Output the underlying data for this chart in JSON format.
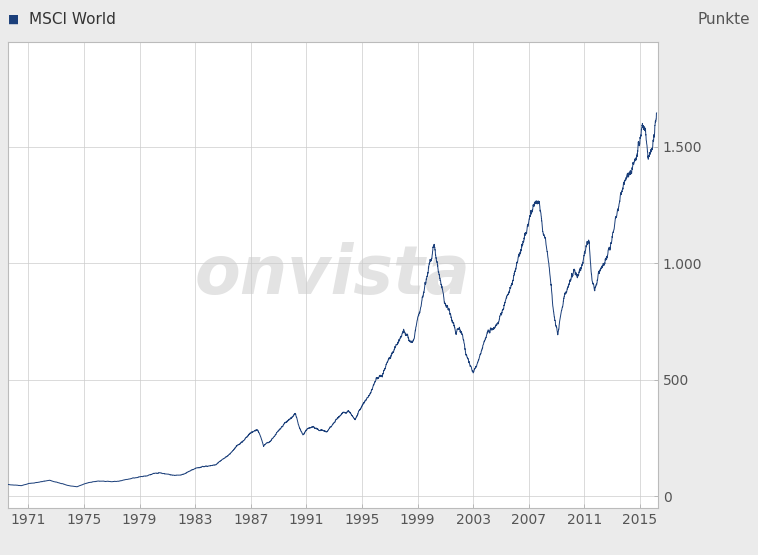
{
  "title_left": "MSCI World",
  "title_right": "Punkte",
  "watermark": "onvista",
  "line_color": "#1b3f7a",
  "bg_color": "#ebebeb",
  "plot_bg_color": "#ffffff",
  "grid_color": "#cccccc",
  "yticks": [
    0,
    500,
    1000,
    1500
  ],
  "ytick_labels": [
    "0",
    "500",
    "1.000",
    "1.500"
  ],
  "xticks": [
    1971,
    1975,
    1979,
    1983,
    1987,
    1991,
    1995,
    1999,
    2003,
    2007,
    2011,
    2015
  ],
  "xmin": 1969.5,
  "xmax": 2016.3,
  "ymin": -50,
  "ymax": 1950,
  "legend_square_color": "#1b3f7a",
  "title_fontsize": 11,
  "tick_fontsize": 10,
  "key_points": [
    [
      1969.5,
      50
    ],
    [
      1970.0,
      48
    ],
    [
      1970.5,
      45
    ],
    [
      1971.0,
      54
    ],
    [
      1971.5,
      57
    ],
    [
      1972.0,
      63
    ],
    [
      1972.5,
      68
    ],
    [
      1973.0,
      60
    ],
    [
      1973.5,
      52
    ],
    [
      1974.0,
      44
    ],
    [
      1974.5,
      41
    ],
    [
      1975.0,
      52
    ],
    [
      1975.5,
      60
    ],
    [
      1976.0,
      65
    ],
    [
      1976.5,
      64
    ],
    [
      1977.0,
      62
    ],
    [
      1977.5,
      64
    ],
    [
      1978.0,
      70
    ],
    [
      1978.5,
      77
    ],
    [
      1979.0,
      82
    ],
    [
      1979.5,
      87
    ],
    [
      1980.0,
      96
    ],
    [
      1980.5,
      100
    ],
    [
      1981.0,
      94
    ],
    [
      1981.5,
      89
    ],
    [
      1982.0,
      91
    ],
    [
      1982.5,
      104
    ],
    [
      1983.0,
      118
    ],
    [
      1983.5,
      125
    ],
    [
      1984.0,
      130
    ],
    [
      1984.5,
      136
    ],
    [
      1985.0,
      158
    ],
    [
      1985.5,
      180
    ],
    [
      1986.0,
      215
    ],
    [
      1986.5,
      242
    ],
    [
      1987.0,
      272
    ],
    [
      1987.5,
      285
    ],
    [
      1987.75,
      248
    ],
    [
      1987.92,
      212
    ],
    [
      1988.0,
      220
    ],
    [
      1988.5,
      242
    ],
    [
      1989.0,
      282
    ],
    [
      1989.5,
      316
    ],
    [
      1989.9,
      335
    ],
    [
      1990.2,
      355
    ],
    [
      1990.5,
      294
    ],
    [
      1990.75,
      265
    ],
    [
      1991.0,
      282
    ],
    [
      1991.5,
      298
    ],
    [
      1992.0,
      284
    ],
    [
      1992.5,
      276
    ],
    [
      1993.0,
      315
    ],
    [
      1993.5,
      352
    ],
    [
      1994.0,
      364
    ],
    [
      1994.5,
      330
    ],
    [
      1995.0,
      382
    ],
    [
      1995.5,
      434
    ],
    [
      1996.0,
      496
    ],
    [
      1996.5,
      530
    ],
    [
      1997.0,
      592
    ],
    [
      1997.5,
      650
    ],
    [
      1998.0,
      716
    ],
    [
      1998.5,
      657
    ],
    [
      1998.75,
      673
    ],
    [
      1999.0,
      774
    ],
    [
      1999.25,
      820
    ],
    [
      1999.5,
      888
    ],
    [
      1999.75,
      955
    ],
    [
      1999.9,
      1012
    ],
    [
      2000.0,
      1000
    ],
    [
      2000.1,
      1050
    ],
    [
      2000.2,
      1080
    ],
    [
      2000.3,
      1040
    ],
    [
      2000.5,
      960
    ],
    [
      2000.75,
      890
    ],
    [
      2001.0,
      828
    ],
    [
      2001.25,
      798
    ],
    [
      2001.5,
      748
    ],
    [
      2001.75,
      703
    ],
    [
      2002.0,
      727
    ],
    [
      2002.25,
      688
    ],
    [
      2002.5,
      606
    ],
    [
      2002.75,
      566
    ],
    [
      2003.0,
      530
    ],
    [
      2003.25,
      556
    ],
    [
      2003.5,
      606
    ],
    [
      2003.75,
      652
    ],
    [
      2004.0,
      688
    ],
    [
      2004.25,
      708
    ],
    [
      2004.5,
      726
    ],
    [
      2004.75,
      743
    ],
    [
      2005.0,
      789
    ],
    [
      2005.25,
      829
    ],
    [
      2005.5,
      870
    ],
    [
      2005.75,
      910
    ],
    [
      2006.0,
      960
    ],
    [
      2006.25,
      1020
    ],
    [
      2006.5,
      1061
    ],
    [
      2006.75,
      1112
    ],
    [
      2007.0,
      1192
    ],
    [
      2007.15,
      1222
    ],
    [
      2007.3,
      1240
    ],
    [
      2007.45,
      1250
    ],
    [
      2007.6,
      1270
    ],
    [
      2007.75,
      1260
    ],
    [
      2007.9,
      1195
    ],
    [
      2008.0,
      1140
    ],
    [
      2008.25,
      1080
    ],
    [
      2008.5,
      975
    ],
    [
      2008.75,
      820
    ],
    [
      2009.0,
      730
    ],
    [
      2009.1,
      695
    ],
    [
      2009.25,
      755
    ],
    [
      2009.5,
      845
    ],
    [
      2009.75,
      895
    ],
    [
      2010.0,
      925
    ],
    [
      2010.25,
      978
    ],
    [
      2010.5,
      942
    ],
    [
      2010.75,
      980
    ],
    [
      2011.0,
      1048
    ],
    [
      2011.2,
      1080
    ],
    [
      2011.35,
      1075
    ],
    [
      2011.5,
      958
    ],
    [
      2011.65,
      916
    ],
    [
      2011.75,
      888
    ],
    [
      2011.9,
      908
    ],
    [
      2012.0,
      948
    ],
    [
      2012.25,
      982
    ],
    [
      2012.5,
      998
    ],
    [
      2012.75,
      1058
    ],
    [
      2013.0,
      1108
    ],
    [
      2013.25,
      1188
    ],
    [
      2013.5,
      1248
    ],
    [
      2013.75,
      1318
    ],
    [
      2014.0,
      1368
    ],
    [
      2014.25,
      1398
    ],
    [
      2014.5,
      1428
    ],
    [
      2014.75,
      1458
    ],
    [
      2015.0,
      1528
    ],
    [
      2015.1,
      1568
    ],
    [
      2015.25,
      1598
    ],
    [
      2015.4,
      1578
    ],
    [
      2015.5,
      1488
    ],
    [
      2015.6,
      1438
    ],
    [
      2015.75,
      1468
    ],
    [
      2015.9,
      1490
    ],
    [
      2016.0,
      1545
    ],
    [
      2016.1,
      1590
    ],
    [
      2016.2,
      1620
    ]
  ]
}
